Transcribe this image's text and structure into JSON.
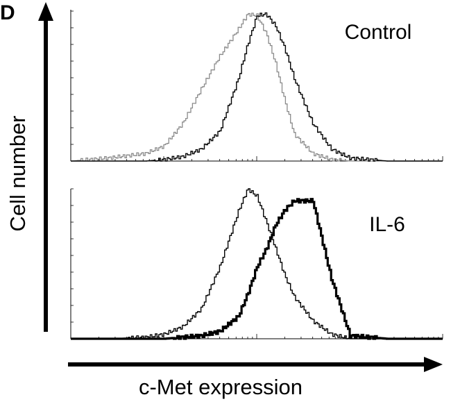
{
  "figure": {
    "panel_letter": "D",
    "y_axis_label": "Cell number",
    "x_axis_label": "c-Met expression"
  },
  "chart_data": [
    {
      "type": "line",
      "title": "Control",
      "xscale": "log",
      "xlim": [
        0,
        4
      ],
      "ylim": [
        0,
        100
      ],
      "grid": false,
      "x": [
        0.0,
        0.4,
        0.8,
        1.0,
        1.2,
        1.4,
        1.6,
        1.8,
        1.9,
        2.0,
        2.1,
        2.2,
        2.3,
        2.4,
        2.6,
        2.8,
        3.0,
        3.4,
        4.0
      ],
      "series": [
        {
          "style": "thin-gray",
          "values": [
            0,
            2,
            5,
            10,
            25,
            48,
            70,
            88,
            98,
            97,
            85,
            65,
            40,
            18,
            5,
            1,
            0,
            0,
            0
          ]
        },
        {
          "style": "thin-black",
          "values": [
            0,
            0,
            0,
            1,
            3,
            8,
            20,
            55,
            78,
            97,
            98,
            90,
            75,
            55,
            25,
            8,
            2,
            0,
            0
          ]
        }
      ]
    },
    {
      "type": "line",
      "title": "IL-6",
      "xscale": "log",
      "xlim": [
        0,
        4
      ],
      "ylim": [
        0,
        100
      ],
      "grid": false,
      "x": [
        0.0,
        0.4,
        0.8,
        1.0,
        1.2,
        1.4,
        1.6,
        1.8,
        1.9,
        2.0,
        2.1,
        2.2,
        2.3,
        2.4,
        2.6,
        2.8,
        3.0,
        3.4,
        4.0
      ],
      "series": [
        {
          "style": "thin-black",
          "values": [
            0,
            0,
            1,
            3,
            8,
            20,
            48,
            85,
            100,
            95,
            78,
            60,
            42,
            28,
            12,
            3,
            0,
            0,
            0
          ]
        },
        {
          "style": "thick-black",
          "values": [
            0,
            0,
            0,
            0,
            1,
            2,
            5,
            15,
            30,
            48,
            60,
            76,
            86,
            92,
            92,
            40,
            2,
            0,
            0
          ]
        }
      ]
    }
  ]
}
